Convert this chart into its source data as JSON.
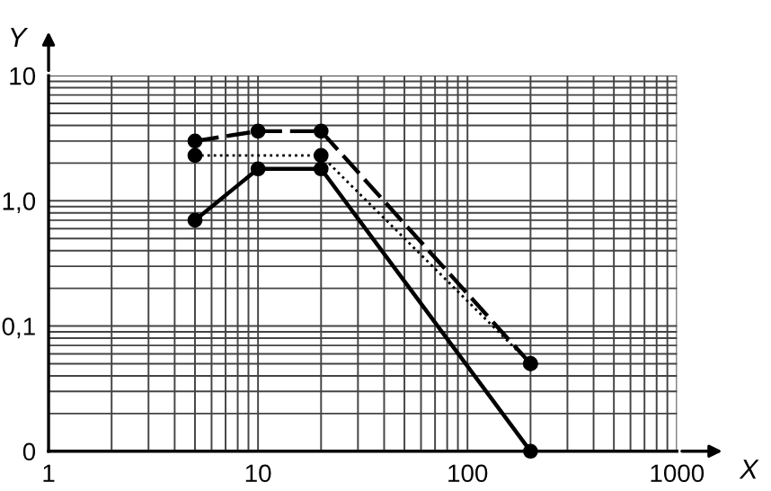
{
  "chart_data": {
    "type": "line",
    "xlabel": "X",
    "ylabel": "Y",
    "log": "xy",
    "grid": true,
    "marker": "circle",
    "xlim": [
      1,
      1000
    ],
    "xticks": [
      1,
      10,
      100,
      1000
    ],
    "ylim": [
      0.01,
      10
    ],
    "yticks": [
      {
        "value": 0.01,
        "label": "0"
      },
      {
        "value": 0.1,
        "label": "0,1"
      },
      {
        "value": 1,
        "label": "1,0"
      },
      10
    ],
    "series": [
      {
        "color": "#000000",
        "line_style": "dashed",
        "x": [
          5,
          10,
          20,
          200
        ],
        "values": [
          3.0,
          3.6,
          3.6,
          0.05
        ]
      },
      {
        "color": "#000000",
        "line_style": "dotted",
        "x": [
          5,
          20,
          200
        ],
        "values": [
          2.3,
          2.3,
          0.05
        ]
      },
      {
        "color": "#000000",
        "line_style": "solid",
        "x": [
          5,
          10,
          20,
          200
        ],
        "values": [
          0.7,
          1.8,
          1.8,
          0.01
        ]
      }
    ]
  }
}
